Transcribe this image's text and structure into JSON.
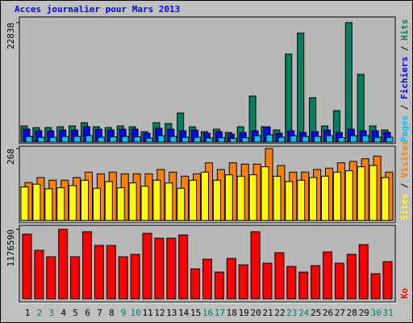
{
  "chart_data": {
    "type": "bar",
    "title": "Acces journalier pour Mars 2013",
    "categories": [
      "1",
      "2",
      "3",
      "4",
      "5",
      "6",
      "7",
      "8",
      "9",
      "10",
      "11",
      "12",
      "13",
      "14",
      "15",
      "16",
      "17",
      "18",
      "19",
      "20",
      "21",
      "22",
      "23",
      "24",
      "25",
      "26",
      "27",
      "28",
      "29",
      "30",
      "31"
    ],
    "category_colors": [
      "#000000",
      "#008060",
      "#008060",
      "#000000",
      "#000000",
      "#000000",
      "#000000",
      "#000000",
      "#008060",
      "#008060",
      "#000000",
      "#000000",
      "#000000",
      "#000000",
      "#000000",
      "#008060",
      "#008060",
      "#000000",
      "#000000",
      "#000000",
      "#000000",
      "#000000",
      "#008060",
      "#008060",
      "#000000",
      "#000000",
      "#000000",
      "#000000",
      "#000000",
      "#008060",
      "#008060"
    ],
    "legend_separator": " / ",
    "panels": [
      {
        "ylim": [
          0,
          22838
        ],
        "yticks": [
          22838
        ],
        "series": [
          {
            "name": "Pages",
            "color": "#00c0ff",
            "values": [
              1080,
              920,
              920,
              1080,
              1080,
              1230,
              920,
              1000,
              1080,
              1000,
              770,
              1230,
              1080,
              920,
              920,
              770,
              850,
              700,
              850,
              1230,
              1390,
              920,
              1230,
              1080,
              1080,
              1230,
              850,
              1230,
              1230,
              920,
              920
            ]
          },
          {
            "name": "Fichiers",
            "color": "#0000ff",
            "values": [
              2470,
              2160,
              2160,
              2310,
              2310,
              2930,
              2470,
              2310,
              2470,
              2470,
              1700,
              2630,
              2470,
              2160,
              2310,
              1700,
              2000,
              1540,
              1850,
              2160,
              2930,
              1700,
              2160,
              1850,
              2000,
              2310,
              1850,
              2470,
              2160,
              2160,
              1850
            ]
          },
          {
            "name": "Hits",
            "color": "#00805c",
            "values": [
              3090,
              2780,
              2780,
              2930,
              3090,
              3700,
              2930,
              2780,
              3090,
              2930,
              2000,
              3700,
              3550,
              5560,
              2930,
              2000,
              2470,
              1850,
              2930,
              8800,
              2930,
              2310,
              16820,
              20830,
              8490,
              3090,
              6020,
              22838,
              12960,
              3090,
              2310
            ]
          }
        ]
      },
      {
        "ylim": [
          0,
          268
        ],
        "yticks": [
          268
        ],
        "series": [
          {
            "name": "Sites",
            "color": "#ffff00",
            "values": [
              125,
              135,
              118,
              122,
              130,
              150,
              120,
              145,
              122,
              140,
              128,
              150,
              140,
              120,
              150,
              180,
              150,
              170,
              165,
              170,
              200,
              165,
              145,
              150,
              160,
              165,
              180,
              185,
              200,
              205,
              160
            ]
          },
          {
            "name": "Visites",
            "color": "#ff8000",
            "values": [
              141,
              160,
              150,
              150,
              160,
              180,
              174,
              180,
              174,
              174,
              174,
              190,
              180,
              165,
              174,
              215,
              190,
              215,
              210,
              210,
              268,
              205,
              180,
              180,
              190,
              195,
              215,
              220,
              230,
              240,
              180
            ]
          }
        ]
      },
      {
        "ylim": [
          0,
          1176590
        ],
        "yticks": [
          1176590
        ],
        "series": [
          {
            "name": "Ko",
            "color": "#ff0000",
            "values": [
              1094480,
              820860,
              711410,
              1176590,
              711410,
              1135520,
              902950,
              902950,
              711410,
              752460,
              1108160,
              1026080,
              1026080,
              1080800,
              506200,
              670370,
              451470,
              684060,
              574610,
              1135520,
              601970,
              779820,
              547250,
              451470,
              560930,
              793510,
              601970,
              752460,
              916630,
              424110,
              629330
            ]
          }
        ]
      }
    ]
  }
}
